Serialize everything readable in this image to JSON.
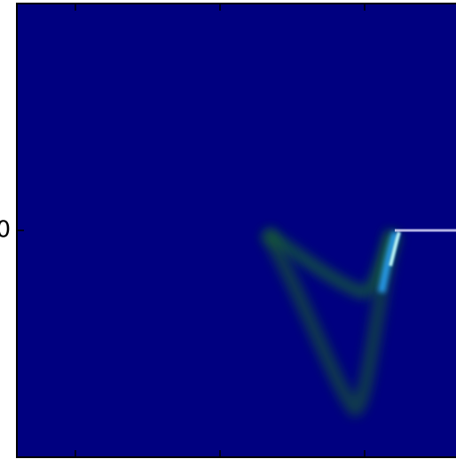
{
  "chart_data": {
    "type": "image",
    "ylim": [
      -1,
      1
    ],
    "yticks": [
      0
    ]
  }
}
